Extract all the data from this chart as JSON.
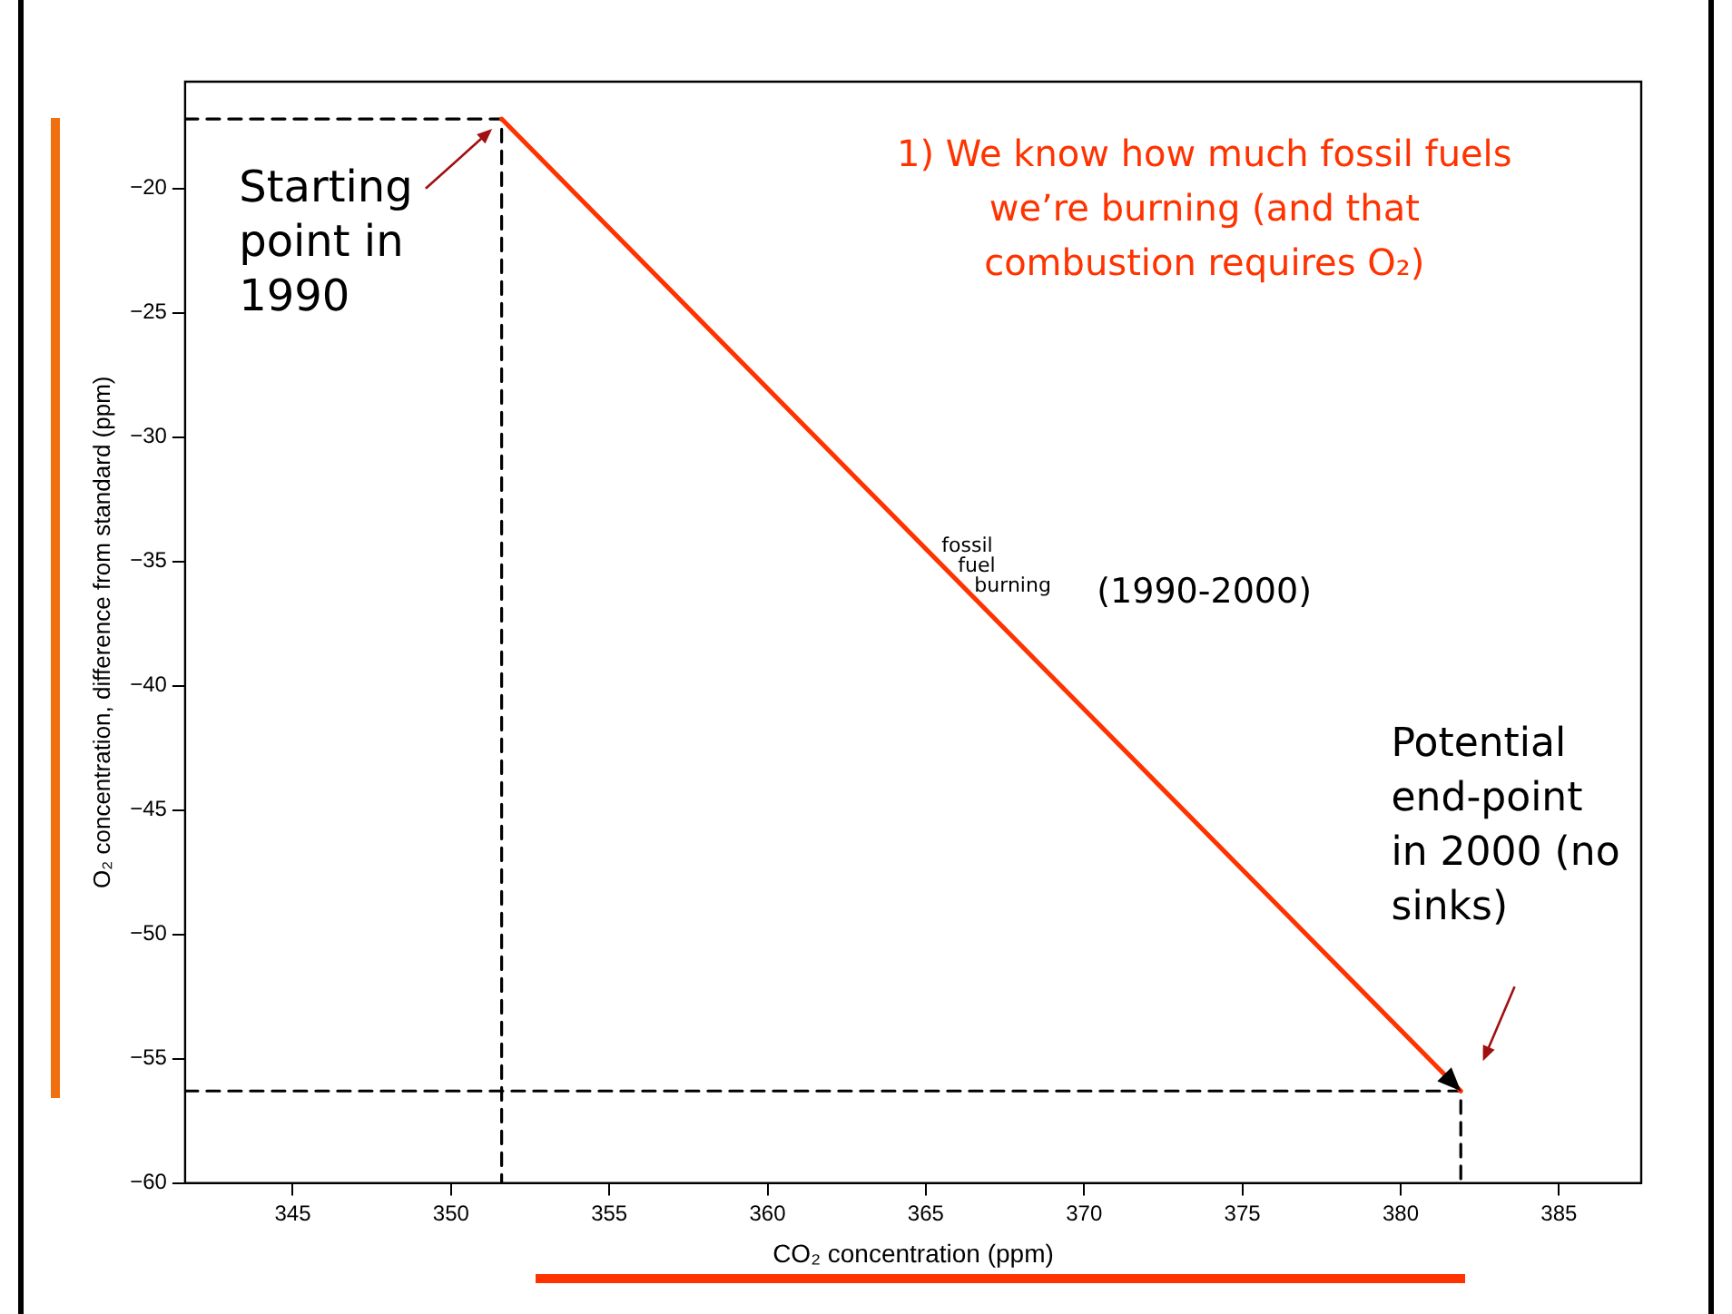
{
  "chart_data": {
    "type": "line",
    "xlabel": "CO₂ concentration (ppm)",
    "ylabel": "O₂ concentration, difference from standard (ppm)",
    "xlim": [
      341.6,
      387.6
    ],
    "ylim": [
      -60,
      -15.7
    ],
    "xticks": [
      345,
      350,
      355,
      360,
      365,
      370,
      375,
      380,
      385
    ],
    "yticks": [
      -60,
      -55,
      -50,
      -45,
      -40,
      -35,
      -30,
      -25,
      -20
    ],
    "grid": false,
    "legend": false,
    "series": [
      {
        "color": "#ff3300",
        "x": [
          351.6,
          381.9
        ],
        "values": [
          -17.2,
          -56.3
        ]
      },
      {
        "color": "#000000",
        "line_style": "dashed",
        "x": [
          341.6,
          351.6,
          351.6
        ],
        "values": [
          -17.2,
          -17.2,
          -60
        ]
      },
      {
        "color": "#000000",
        "line_style": "dashed",
        "x": [
          341.6,
          381.9,
          381.9
        ],
        "values": [
          -56.3,
          -56.3,
          -60
        ]
      }
    ],
    "annotations": [
      "Starting point in 1990",
      "1) We know how much fossil fuels we’re burning (and that combustion requires O₂)",
      "fossil fuel burning",
      "(1990-2000)",
      "Potential end-point in 2000 (no sinks)"
    ]
  }
}
